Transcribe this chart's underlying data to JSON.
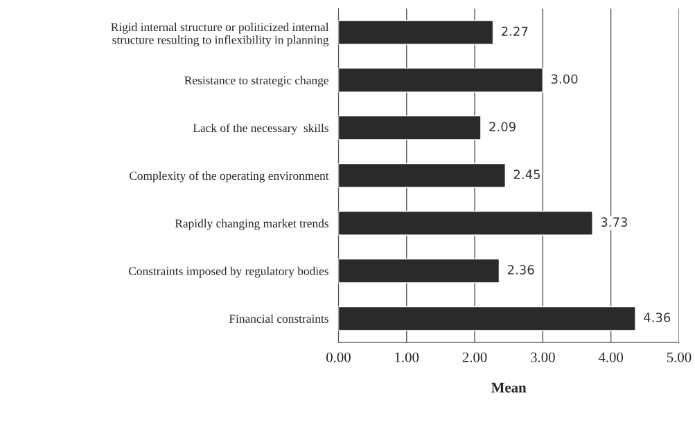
{
  "chart_data": {
    "type": "bar",
    "orientation": "horizontal",
    "xlabel": "Mean",
    "categories": [
      "Rigid internal structure or politicized internal\nstructure resulting to inflexibility in planning",
      "Resistance to strategic change",
      "Lack of the necessary  skills",
      "Complexity of the operating environment",
      "Rapidly changing market trends",
      "Constraints imposed by regulatory bodies",
      "Financial constraints"
    ],
    "values": [
      2.27,
      3.0,
      2.09,
      2.45,
      3.73,
      2.36,
      4.36
    ],
    "value_labels": [
      "2.27",
      "3.00",
      "2.09",
      "2.45",
      "3.73",
      "2.36",
      "4.36"
    ],
    "color": "#2a2a2a",
    "xlim": [
      0,
      5
    ],
    "xticks": [
      {
        "value": 0,
        "label": "0.00"
      },
      {
        "value": 1,
        "label": "1.00"
      },
      {
        "value": 2,
        "label": "2.00"
      },
      {
        "value": 3,
        "label": "3.00"
      },
      {
        "value": 4,
        "label": "4.00"
      },
      {
        "value": 5,
        "label": "5.00"
      }
    ],
    "grid": "x",
    "legend": false
  }
}
